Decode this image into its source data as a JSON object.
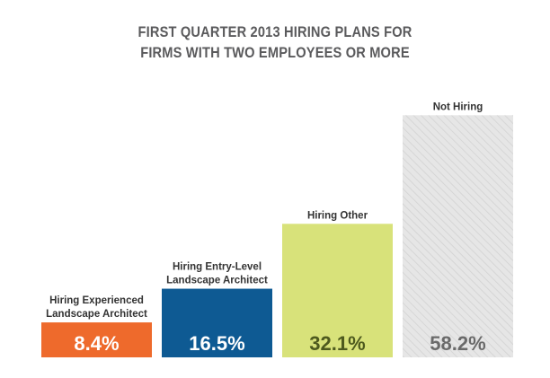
{
  "chart_data": {
    "type": "bar",
    "title_lines": [
      "FIRST QUARTER 2013 HIRING PLANS FOR",
      "FIRMS WITH TWO EMPLOYEES OR MORE"
    ],
    "categories": [
      [
        "Hiring Experienced",
        "Landscape Architect"
      ],
      [
        "Hiring Entry-Level",
        "Landscape Architect"
      ],
      [
        "Hiring Other"
      ],
      [
        "Not Hiring"
      ]
    ],
    "values": [
      8.4,
      16.5,
      32.1,
      58.2
    ],
    "value_labels": [
      "8.4%",
      "16.5%",
      "32.1%",
      "58.2%"
    ],
    "colors": [
      "#ee6a2c",
      "#0e5a93",
      "#d8e27a",
      "#e4e4e4"
    ],
    "value_label_colors": [
      "#ffffff",
      "#ffffff",
      "#4e5a1e",
      "#6a6a6a"
    ],
    "patterns": [
      "solid",
      "solid",
      "solid",
      "diagonal-hatch"
    ],
    "ylim": [
      0,
      60
    ],
    "grid": false,
    "legend": "none"
  }
}
